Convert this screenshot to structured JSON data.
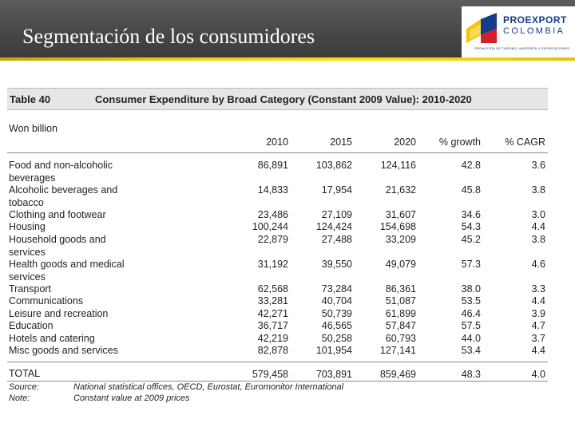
{
  "header": {
    "title": "Segmentación de los consumidores",
    "logo": {
      "line1": "PROEXPORT",
      "line2": "COLOMBIA",
      "tagline": "PROMOCIÓN DE TURISMO, INVERSIÓN Y EXPORTACIONES"
    }
  },
  "table": {
    "number": "Table 40",
    "title": "Consumer Expenditure by Broad Category (Constant 2009 Value): 2010-2020",
    "unit": "Won billion",
    "columns": [
      "2010",
      "2015",
      "2020",
      "% growth",
      "% CAGR"
    ],
    "rows": [
      {
        "label": "Food and non-alcoholic beverages",
        "values": [
          "86,891",
          "103,862",
          "124,116",
          "42.8",
          "3.6"
        ]
      },
      {
        "label": "Alcoholic beverages and tobacco",
        "values": [
          "14,833",
          "17,954",
          "21,632",
          "45.8",
          "3.8"
        ]
      },
      {
        "label": "Clothing and footwear",
        "values": [
          "23,486",
          "27,109",
          "31,607",
          "34.6",
          "3.0"
        ]
      },
      {
        "label": "Housing",
        "values": [
          "100,244",
          "124,424",
          "154,698",
          "54.3",
          "4.4"
        ]
      },
      {
        "label": "Household goods and services",
        "values": [
          "22,879",
          "27,488",
          "33,209",
          "45.2",
          "3.8"
        ]
      },
      {
        "label": "Health goods and medical services",
        "values": [
          "31,192",
          "39,550",
          "49,079",
          "57.3",
          "4.6"
        ]
      },
      {
        "label": "Transport",
        "values": [
          "62,568",
          "73,284",
          "86,361",
          "38.0",
          "3.3"
        ]
      },
      {
        "label": "Communications",
        "values": [
          "33,281",
          "40,704",
          "51,087",
          "53.5",
          "4.4"
        ]
      },
      {
        "label": "Leisure and recreation",
        "values": [
          "42,271",
          "50,739",
          "61,899",
          "46.4",
          "3.9"
        ]
      },
      {
        "label": "Education",
        "values": [
          "36,717",
          "46,565",
          "57,847",
          "57.5",
          "4.7"
        ]
      },
      {
        "label": "Hotels and catering",
        "values": [
          "42,219",
          "50,258",
          "60,793",
          "44.0",
          "3.7"
        ]
      },
      {
        "label": "Misc goods and services",
        "values": [
          "82,878",
          "101,954",
          "127,141",
          "53.4",
          "4.4"
        ]
      }
    ],
    "total": {
      "label": "TOTAL",
      "values": [
        "579,458",
        "703,891",
        "859,469",
        "48.3",
        "4.0"
      ]
    },
    "source_label": "Source:",
    "source_text": "National statistical offices, OECD, Eurostat, Euromonitor International",
    "note_label": "Note:",
    "note_text": "Constant value at 2009 prices"
  }
}
